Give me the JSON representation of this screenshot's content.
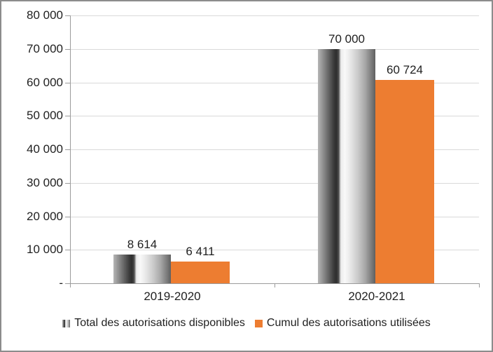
{
  "chart_data": {
    "type": "bar",
    "title": "",
    "categories": [
      "2019-2020",
      "2020-2021"
    ],
    "series": [
      {
        "name": "Total des autorisations disponibles",
        "values": [
          8614,
          70000
        ],
        "data_labels": [
          "8 614",
          "70 000"
        ],
        "fill": "gray-gradient"
      },
      {
        "name": "Cumul des autorisations utilisées",
        "values": [
          6411,
          60724
        ],
        "data_labels": [
          "6 411",
          "60 724"
        ],
        "fill": "#ED7D31"
      }
    ],
    "y_axis": {
      "min": 0,
      "max": 80000,
      "step": 10000,
      "tick_labels": [
        "80 000",
        "70 000",
        "60 000",
        "50 000",
        "40 000",
        "30 000",
        "20 000",
        "10 000",
        "-"
      ]
    },
    "x_axis": {
      "tick_labels": [
        "2019-2020",
        "2020-2021"
      ]
    },
    "legend": {
      "position": "bottom",
      "items": [
        "Total des autorisations disponibles",
        "Cumul des autorisations utilisées"
      ]
    },
    "grid": true
  },
  "colors": {
    "orange": "#ED7D31",
    "gridline": "#D9D9D9",
    "axis": "#9B9B9B",
    "border": "#8C8C8C",
    "text": "#1F1F1F"
  }
}
